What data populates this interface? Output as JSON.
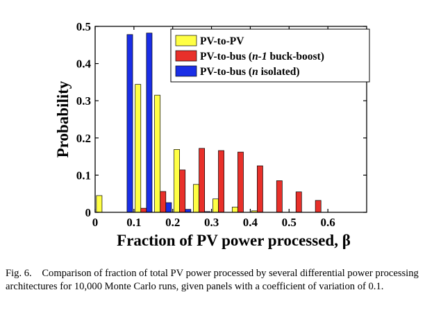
{
  "chart_data": {
    "type": "bar",
    "xlabel": "Fraction of PV power processed, β",
    "ylabel": "Probability",
    "xlim": [
      0,
      0.7
    ],
    "ylim": [
      0,
      0.5
    ],
    "bin_width": 0.05,
    "x_ticks": [
      0,
      0.1,
      0.2,
      0.3,
      0.4,
      0.5,
      0.6
    ],
    "x_tick_labels": [
      "0",
      "0.1",
      "0.2",
      "0.3",
      "0.4",
      "0.5",
      "0.6"
    ],
    "y_ticks": [
      0,
      0.1,
      0.2,
      0.3,
      0.4,
      0.5
    ],
    "y_tick_labels": [
      "0",
      "0.1",
      "0.2",
      "0.3",
      "0.4",
      "0.5"
    ],
    "x_bin_centers": [
      0.025,
      0.075,
      0.125,
      0.175,
      0.225,
      0.275,
      0.325,
      0.375,
      0.425,
      0.475,
      0.525,
      0.575,
      0.625,
      0.675
    ],
    "legend_position": "top-right",
    "grid": false,
    "series": [
      {
        "name": "PV-to-PV",
        "color": "#ffff44",
        "values": [
          0.045,
          0,
          0.344,
          0.315,
          0.169,
          0.075,
          0.036,
          0.014,
          0.004,
          0,
          0,
          0,
          0,
          0
        ]
      },
      {
        "name": "PV-to-bus (n-1 buck-boost)",
        "color": "#e8302a",
        "values": [
          0,
          0,
          0.011,
          0.056,
          0.114,
          0.172,
          0.166,
          0.162,
          0.125,
          0.085,
          0.055,
          0.032,
          0,
          0
        ]
      },
      {
        "name": "PV-to-bus (n isolated)",
        "color": "#1a2ee6",
        "values": [
          0,
          0.478,
          0.482,
          0.026,
          0.008,
          0.002,
          0,
          0,
          0,
          0,
          0,
          0,
          0,
          0
        ]
      }
    ]
  },
  "legend": {
    "entries": [
      {
        "plain": "PV-to-PV"
      },
      {
        "prefix": "PV-to-bus (",
        "italic": "n-1",
        "suffix": " buck-boost)"
      },
      {
        "prefix": "PV-to-bus (",
        "italic": "n",
        "suffix": " isolated)"
      }
    ]
  },
  "caption": {
    "label": "Fig. 6.",
    "text": "Comparison of fraction of total PV power processed by several differential power processing architectures for 10,000 Monte Carlo runs, given panels with a coefficient of variation of 0.1."
  }
}
